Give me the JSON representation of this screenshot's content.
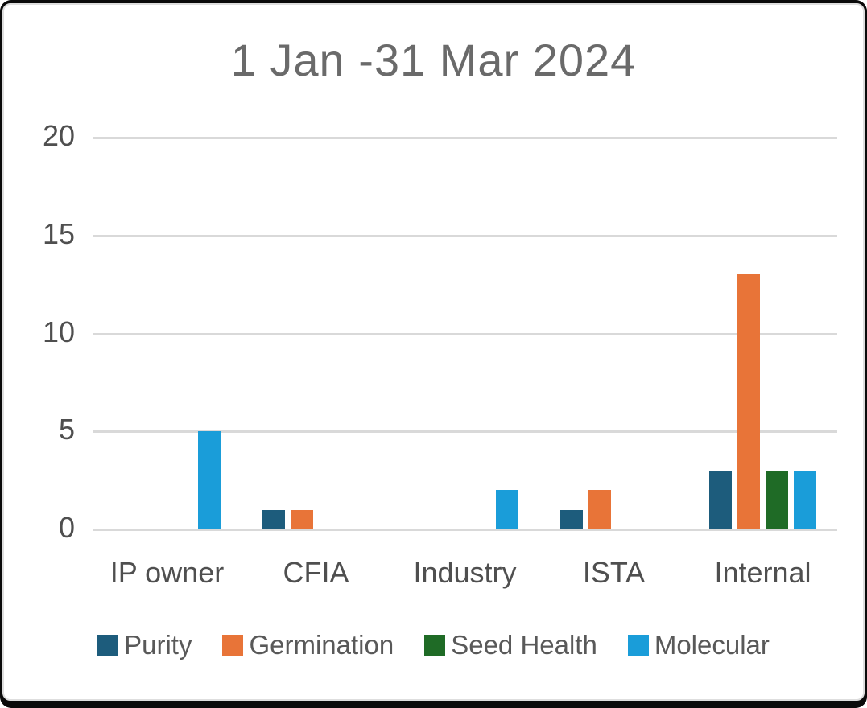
{
  "chart_data": {
    "type": "bar",
    "title": "1 Jan -31 Mar 2024",
    "categories": [
      "IP owner",
      "CFIA",
      "Industry",
      "ISTA",
      "Internal"
    ],
    "series": [
      {
        "name": "Purity",
        "color": "#1D5C7C",
        "values": [
          0,
          1,
          0,
          1,
          3
        ]
      },
      {
        "name": "Germination",
        "color": "#E87438",
        "values": [
          0,
          1,
          0,
          2,
          13
        ]
      },
      {
        "name": "Seed Health",
        "color": "#1F6B26",
        "values": [
          0,
          0,
          0,
          0,
          3
        ]
      },
      {
        "name": "Molecular",
        "color": "#1A9DD9",
        "values": [
          5,
          0,
          2,
          0,
          3
        ]
      }
    ],
    "ylim": [
      0,
      20
    ],
    "yticks": [
      20,
      15,
      10,
      5,
      0
    ],
    "grid": "horizontal",
    "legend_position": "bottom",
    "colors": {
      "title_text": "#6A6A6A",
      "axis_text": "#4F4F4F",
      "legend_text": "#595959",
      "gridline": "#D9D9D9",
      "frame_border": "#0A0A0A",
      "card_background": "#FFFFFF"
    }
  }
}
